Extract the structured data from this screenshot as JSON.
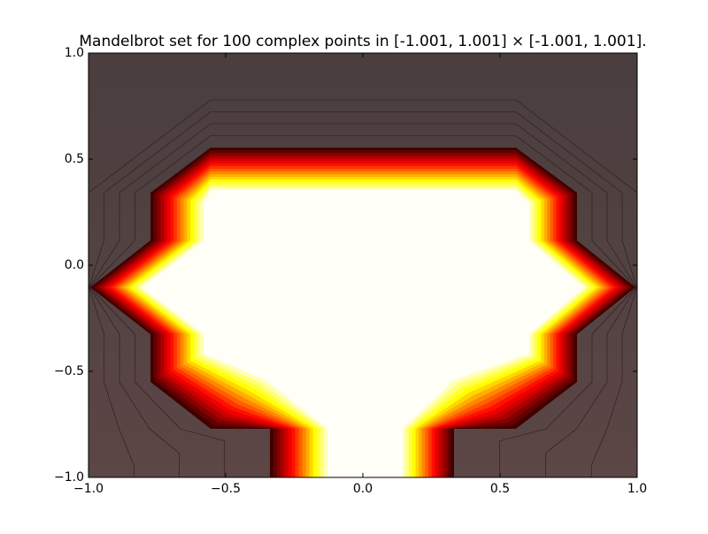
{
  "chart_data": {
    "type": "contour",
    "title": "Mandelbrot set for 100 complex points in [-1.001, 1.001] × [-1.001, 1.001].",
    "xlim": [
      -1.0,
      1.0
    ],
    "ylim": [
      -1.0,
      1.0
    ],
    "xticks": [
      {
        "value": -1.0,
        "label": "−1.0"
      },
      {
        "value": -0.5,
        "label": "−0.5"
      },
      {
        "value": 0.0,
        "label": "0.0"
      },
      0.5,
      {
        "value": 1.0,
        "label": "1.0"
      }
    ],
    "yticks": [
      {
        "value": -1.0,
        "label": "−1.0"
      },
      {
        "value": -0.5,
        "label": "−0.5"
      },
      {
        "value": 0.0,
        "label": "0.0"
      },
      0.5,
      {
        "value": 1.0,
        "label": "1.0"
      }
    ]
  }
}
